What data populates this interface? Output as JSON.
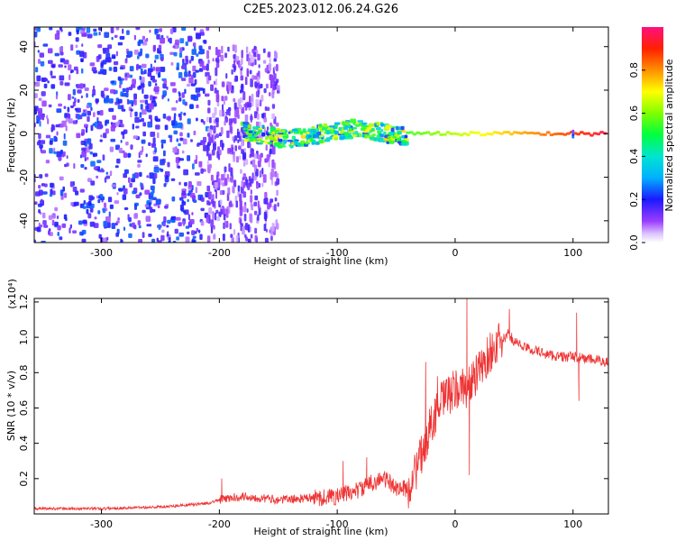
{
  "chart_data": [
    {
      "type": "heatmap",
      "title": "C2E5.2023.012.06.24.G26",
      "xlabel": "Height of straight line (km)",
      "ylabel": "Frequency (Hz)",
      "xlim": [
        -357,
        130
      ],
      "ylim": [
        -50,
        49
      ],
      "x_ticks": [
        -300,
        -200,
        -100,
        0,
        100
      ],
      "y_ticks": [
        -40,
        -20,
        0,
        20,
        40
      ],
      "grid": false,
      "colorbar": {
        "label": "Normalized spectral amplitude",
        "range": [
          0,
          1
        ],
        "ticks": [
          "0.0",
          "0.2",
          "0.4",
          "0.6",
          "0.8"
        ]
      },
      "features": [
        {
          "x": [
            -357,
            -210
          ],
          "y_range": [
            -50,
            49
          ],
          "amplitude": 0.22,
          "pattern": "broadband speckle"
        },
        {
          "x": [
            -210,
            -150
          ],
          "y_range": [
            -50,
            40
          ],
          "amplitude": 0.15,
          "pattern": "dense vertical streaks"
        },
        {
          "x": [
            -180,
            -40
          ],
          "y_range": [
            -6,
            8
          ],
          "amplitude": 0.4,
          "pattern": "wavy band near 0 Hz"
        },
        {
          "x": [
            -40,
            130
          ],
          "y_range": [
            -1.5,
            1.5
          ],
          "amplitude": 0.95,
          "pattern": "narrow band at 0 Hz"
        },
        {
          "x": [
            100,
            101
          ],
          "y_range": [
            -4,
            4
          ],
          "amplitude": 0.35,
          "pattern": "spike"
        }
      ]
    },
    {
      "type": "line",
      "xlabel": "Height of straight line (km)",
      "ylabel": "SNR (10 * v/v)",
      "y_multiplier": "(x10⁴)",
      "xlim": [
        -357,
        130
      ],
      "ylim": [
        0,
        1.22
      ],
      "x_ticks": [
        -300,
        -200,
        -100,
        0,
        100
      ],
      "y_ticks": [
        "0.2",
        "0.4",
        "0.6",
        "0.8",
        "1.0",
        "1.2"
      ],
      "color": "#ee3333",
      "x": [
        -357,
        -300,
        -250,
        -210,
        -200,
        -180,
        -150,
        -120,
        -100,
        -80,
        -70,
        -60,
        -50,
        -40,
        -30,
        -20,
        -10,
        0,
        10,
        20,
        30,
        40,
        45,
        50,
        60,
        70,
        80,
        90,
        100,
        110,
        120,
        130
      ],
      "values": [
        0.03,
        0.03,
        0.04,
        0.06,
        0.08,
        0.1,
        0.08,
        0.09,
        0.1,
        0.14,
        0.18,
        0.2,
        0.15,
        0.14,
        0.3,
        0.52,
        0.65,
        0.7,
        0.72,
        0.8,
        0.92,
        0.98,
        1.02,
        0.98,
        0.94,
        0.92,
        0.9,
        0.89,
        0.89,
        0.88,
        0.87,
        0.86
      ],
      "spikes": [
        {
          "x": -198,
          "value": 0.2
        },
        {
          "x": -95,
          "value": 0.3
        },
        {
          "x": -75,
          "value": 0.32
        },
        {
          "x": -25,
          "value": 0.86
        },
        {
          "x": -15,
          "value": 0.78
        },
        {
          "x": 10,
          "value": 1.22
        },
        {
          "x": 12,
          "value": 0.22
        },
        {
          "x": 46,
          "value": 1.16
        },
        {
          "x": 103,
          "value": 1.14
        },
        {
          "x": 105,
          "value": 0.64
        }
      ]
    }
  ]
}
